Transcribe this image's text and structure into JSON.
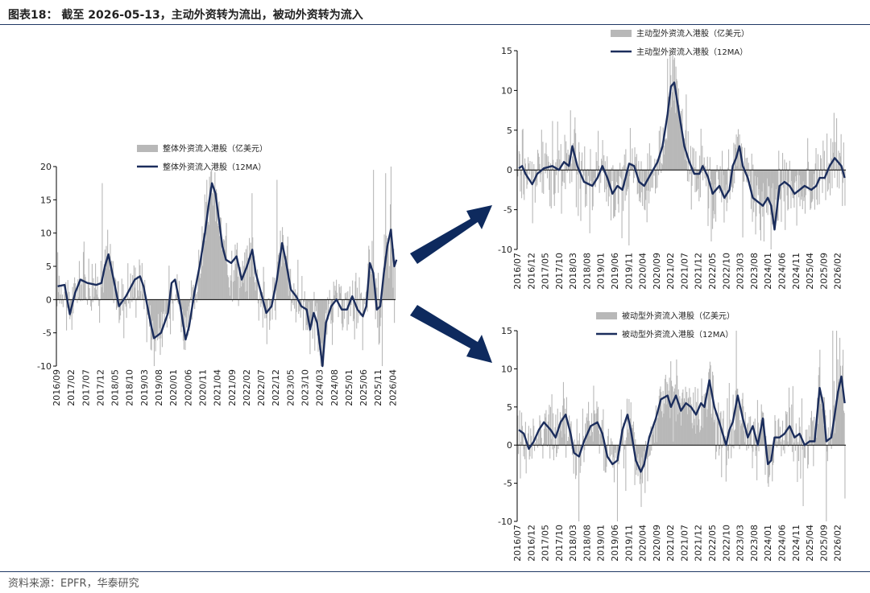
{
  "figure": {
    "title": "图表18：  截至 2026-05-13，主动外资转为流出，被动外资转为流入",
    "source": "资料来源：EPFR，华泰研究"
  },
  "colors": {
    "line": "#1b2d5c",
    "bar": "#b8b8b8",
    "arrow": "#0e2a5e"
  },
  "chart_data": [
    {
      "id": "overall",
      "type": "bar+line",
      "ylim": [
        -10,
        20
      ],
      "yticks": [
        -10,
        -5,
        0,
        5,
        10,
        15,
        20
      ],
      "x_start": "2016-09",
      "x_end": "2026-05",
      "xtick_labels": [
        "2016/09",
        "2017/02",
        "2017/07",
        "2017/12",
        "2018/05",
        "2018/10",
        "2019/03",
        "2019/08",
        "2020/01",
        "2020/06",
        "2020/11",
        "2021/04",
        "2021/09",
        "2022/02",
        "2022/07",
        "2022/12",
        "2023/05",
        "2023/10",
        "2024/03",
        "2024/08",
        "2025/01",
        "2025/06",
        "2025/11",
        "2026/04"
      ],
      "series": [
        {
          "name": "整体外资流入港股（亿美元）",
          "kind": "bar"
        },
        {
          "name": "整体外资流入港股（12MA）",
          "kind": "line"
        }
      ],
      "ma_line": [
        [
          2016.7,
          2.0
        ],
        [
          2016.9,
          2.2
        ],
        [
          2017.05,
          -2.2
        ],
        [
          2017.2,
          1.0
        ],
        [
          2017.35,
          3.0
        ],
        [
          2017.55,
          2.5
        ],
        [
          2017.8,
          2.2
        ],
        [
          2017.95,
          2.5
        ],
        [
          2018.05,
          5.0
        ],
        [
          2018.15,
          6.8
        ],
        [
          2018.3,
          3.0
        ],
        [
          2018.45,
          -1.0
        ],
        [
          2018.65,
          0.5
        ],
        [
          2018.9,
          3.0
        ],
        [
          2019.05,
          3.5
        ],
        [
          2019.15,
          2.0
        ],
        [
          2019.35,
          -3.5
        ],
        [
          2019.45,
          -5.8
        ],
        [
          2019.65,
          -5.0
        ],
        [
          2019.85,
          -2.0
        ],
        [
          2019.95,
          2.5
        ],
        [
          2020.05,
          3.0
        ],
        [
          2020.2,
          -1.0
        ],
        [
          2020.35,
          -6.0
        ],
        [
          2020.45,
          -4.0
        ],
        [
          2020.6,
          1.0
        ],
        [
          2020.75,
          5.0
        ],
        [
          2020.9,
          10.0
        ],
        [
          2021.0,
          14.0
        ],
        [
          2021.1,
          17.5
        ],
        [
          2021.2,
          16.0
        ],
        [
          2021.3,
          12.0
        ],
        [
          2021.4,
          8.0
        ],
        [
          2021.5,
          6.0
        ],
        [
          2021.65,
          5.5
        ],
        [
          2021.8,
          6.5
        ],
        [
          2021.95,
          3.0
        ],
        [
          2022.1,
          5.0
        ],
        [
          2022.25,
          7.5
        ],
        [
          2022.35,
          4.0
        ],
        [
          2022.5,
          1.0
        ],
        [
          2022.65,
          -2.0
        ],
        [
          2022.8,
          -1.0
        ],
        [
          2022.95,
          3.0
        ],
        [
          2023.1,
          8.5
        ],
        [
          2023.2,
          6.0
        ],
        [
          2023.35,
          1.5
        ],
        [
          2023.5,
          0.5
        ],
        [
          2023.65,
          -1.0
        ],
        [
          2023.8,
          -1.5
        ],
        [
          2023.9,
          -4.5
        ],
        [
          2024.0,
          -2.0
        ],
        [
          2024.1,
          -3.5
        ],
        [
          2024.25,
          -10.0
        ],
        [
          2024.35,
          -3.5
        ],
        [
          2024.5,
          -1.0
        ],
        [
          2024.65,
          0.0
        ],
        [
          2024.8,
          -1.5
        ],
        [
          2024.95,
          -1.5
        ],
        [
          2025.1,
          0.5
        ],
        [
          2025.25,
          -1.5
        ],
        [
          2025.4,
          -2.5
        ],
        [
          2025.5,
          -1.0
        ],
        [
          2025.6,
          5.5
        ],
        [
          2025.7,
          4.0
        ],
        [
          2025.8,
          -1.5
        ],
        [
          2025.9,
          -1.0
        ],
        [
          2026.0,
          4.0
        ],
        [
          2026.1,
          8.0
        ],
        [
          2026.2,
          10.5
        ],
        [
          2026.3,
          5.0
        ],
        [
          2026.36,
          6.0
        ]
      ],
      "bar_spikes": [
        [
          2017.98,
          17.5
        ],
        [
          2018.12,
          10.5
        ],
        [
          2019.45,
          -10.0
        ],
        [
          2020.95,
          18.0
        ],
        [
          2021.1,
          16.0
        ],
        [
          2022.25,
          16.0
        ],
        [
          2022.95,
          18.0
        ],
        [
          2024.25,
          -10.0
        ],
        [
          2025.7,
          19.5
        ],
        [
          2025.95,
          -10.0
        ],
        [
          2026.05,
          19.0
        ],
        [
          2026.2,
          20.0
        ],
        [
          2026.3,
          -3.5
        ]
      ]
    },
    {
      "id": "active",
      "type": "bar+line",
      "ylim": [
        -10,
        15
      ],
      "yticks": [
        -10,
        -5,
        0,
        5,
        10,
        15
      ],
      "x_start": "2016-07",
      "x_end": "2026-05",
      "xtick_labels": [
        "2016/07",
        "2016/12",
        "2017/05",
        "2017/10",
        "2018/03",
        "2018/08",
        "2019/01",
        "2019/06",
        "2019/11",
        "2020/04",
        "2020/09",
        "2021/02",
        "2021/07",
        "2021/12",
        "2022/05",
        "2022/10",
        "2023/03",
        "2023/08",
        "2024/01",
        "2024/06",
        "2024/11",
        "2025/04",
        "2025/09",
        "2026/02"
      ],
      "series": [
        {
          "name": "主动型外资流入港股（亿美元）",
          "kind": "bar"
        },
        {
          "name": "主动型外资流入港股（12MA）",
          "kind": "line"
        }
      ],
      "ma_line": [
        [
          2016.55,
          0.2
        ],
        [
          2016.65,
          0.5
        ],
        [
          2016.75,
          -0.5
        ],
        [
          2016.95,
          -1.8
        ],
        [
          2017.1,
          -0.5
        ],
        [
          2017.3,
          0.2
        ],
        [
          2017.55,
          0.5
        ],
        [
          2017.75,
          0.0
        ],
        [
          2017.9,
          1.0
        ],
        [
          2018.05,
          0.5
        ],
        [
          2018.15,
          3.0
        ],
        [
          2018.3,
          0.5
        ],
        [
          2018.5,
          -1.5
        ],
        [
          2018.75,
          -2.0
        ],
        [
          2018.9,
          -1.0
        ],
        [
          2019.05,
          0.5
        ],
        [
          2019.2,
          -1.0
        ],
        [
          2019.35,
          -3.0
        ],
        [
          2019.5,
          -2.0
        ],
        [
          2019.65,
          -2.5
        ],
        [
          2019.85,
          0.8
        ],
        [
          2020.0,
          0.5
        ],
        [
          2020.15,
          -1.5
        ],
        [
          2020.3,
          -2.0
        ],
        [
          2020.5,
          -0.5
        ],
        [
          2020.7,
          1.0
        ],
        [
          2020.85,
          3.0
        ],
        [
          2021.0,
          7.0
        ],
        [
          2021.1,
          10.5
        ],
        [
          2021.2,
          11.0
        ],
        [
          2021.35,
          7.0
        ],
        [
          2021.5,
          3.0
        ],
        [
          2021.65,
          1.0
        ],
        [
          2021.8,
          -0.5
        ],
        [
          2021.95,
          -0.5
        ],
        [
          2022.05,
          0.5
        ],
        [
          2022.2,
          -0.8
        ],
        [
          2022.35,
          -3.0
        ],
        [
          2022.55,
          -2.0
        ],
        [
          2022.7,
          -3.5
        ],
        [
          2022.85,
          -2.5
        ],
        [
          2022.95,
          0.5
        ],
        [
          2023.05,
          1.5
        ],
        [
          2023.15,
          3.0
        ],
        [
          2023.25,
          0.5
        ],
        [
          2023.4,
          -1.0
        ],
        [
          2023.55,
          -3.5
        ],
        [
          2023.7,
          -4.0
        ],
        [
          2023.85,
          -4.5
        ],
        [
          2024.0,
          -3.5
        ],
        [
          2024.1,
          -4.5
        ],
        [
          2024.2,
          -7.5
        ],
        [
          2024.35,
          -2.0
        ],
        [
          2024.5,
          -1.5
        ],
        [
          2024.65,
          -2.0
        ],
        [
          2024.8,
          -3.0
        ],
        [
          2024.95,
          -2.5
        ],
        [
          2025.1,
          -2.0
        ],
        [
          2025.3,
          -2.5
        ],
        [
          2025.45,
          -2.0
        ],
        [
          2025.55,
          -1.0
        ],
        [
          2025.7,
          -1.0
        ],
        [
          2025.85,
          0.5
        ],
        [
          2026.0,
          1.5
        ],
        [
          2026.1,
          1.0
        ],
        [
          2026.2,
          0.5
        ],
        [
          2026.3,
          -1.0
        ]
      ],
      "bar_spikes": [
        [
          2018.1,
          7.5
        ],
        [
          2019.85,
          -9.5
        ],
        [
          2021.0,
          14.0
        ],
        [
          2021.15,
          15.0
        ],
        [
          2021.55,
          9.5
        ],
        [
          2022.3,
          -9.0
        ],
        [
          2023.25,
          -8.5
        ],
        [
          2023.75,
          -5.5
        ],
        [
          2024.2,
          -7.0
        ],
        [
          2025.4,
          -5.0
        ],
        [
          2026.05,
          6.5
        ],
        [
          2026.2,
          4.5
        ],
        [
          2026.3,
          -4.5
        ]
      ]
    },
    {
      "id": "passive",
      "type": "bar+line",
      "ylim": [
        -10,
        15
      ],
      "yticks": [
        -10,
        -5,
        0,
        5,
        10,
        15
      ],
      "x_start": "2016-07",
      "x_end": "2026-05",
      "xtick_labels": [
        "2016/07",
        "2016/12",
        "2017/05",
        "2017/10",
        "2018/03",
        "2018/08",
        "2019/01",
        "2019/06",
        "2019/11",
        "2020/04",
        "2020/09",
        "2021/02",
        "2021/07",
        "2021/12",
        "2022/05",
        "2022/10",
        "2023/03",
        "2023/08",
        "2024/01",
        "2024/06",
        "2024/11",
        "2025/04",
        "2025/09",
        "2026/02"
      ],
      "series": [
        {
          "name": "被动型外资流入港股（亿美元）",
          "kind": "bar"
        },
        {
          "name": "被动型外资流入港股（12MA）",
          "kind": "line"
        }
      ],
      "ma_line": [
        [
          2016.55,
          2.0
        ],
        [
          2016.7,
          1.5
        ],
        [
          2016.85,
          -0.5
        ],
        [
          2017.0,
          0.5
        ],
        [
          2017.15,
          2.0
        ],
        [
          2017.3,
          3.0
        ],
        [
          2017.5,
          2.0
        ],
        [
          2017.65,
          1.0
        ],
        [
          2017.8,
          3.0
        ],
        [
          2017.95,
          4.0
        ],
        [
          2018.1,
          1.5
        ],
        [
          2018.2,
          -1.0
        ],
        [
          2018.35,
          -1.5
        ],
        [
          2018.5,
          0.5
        ],
        [
          2018.7,
          2.5
        ],
        [
          2018.9,
          3.0
        ],
        [
          2019.05,
          1.5
        ],
        [
          2019.2,
          -1.5
        ],
        [
          2019.35,
          -2.5
        ],
        [
          2019.5,
          -2.0
        ],
        [
          2019.65,
          2.0
        ],
        [
          2019.8,
          4.0
        ],
        [
          2019.9,
          2.0
        ],
        [
          2020.05,
          -2.0
        ],
        [
          2020.2,
          -3.5
        ],
        [
          2020.3,
          -2.5
        ],
        [
          2020.45,
          1.0
        ],
        [
          2020.65,
          3.5
        ],
        [
          2020.8,
          6.0
        ],
        [
          2021.0,
          6.5
        ],
        [
          2021.1,
          5.0
        ],
        [
          2021.25,
          6.5
        ],
        [
          2021.4,
          4.5
        ],
        [
          2021.55,
          5.5
        ],
        [
          2021.7,
          5.0
        ],
        [
          2021.85,
          4.0
        ],
        [
          2022.0,
          5.5
        ],
        [
          2022.1,
          5.0
        ],
        [
          2022.25,
          8.5
        ],
        [
          2022.4,
          5.0
        ],
        [
          2022.55,
          3.0
        ],
        [
          2022.75,
          0.0
        ],
        [
          2022.85,
          2.0
        ],
        [
          2022.95,
          3.0
        ],
        [
          2023.1,
          6.5
        ],
        [
          2023.25,
          3.5
        ],
        [
          2023.4,
          1.0
        ],
        [
          2023.55,
          2.5
        ],
        [
          2023.7,
          0.0
        ],
        [
          2023.85,
          3.5
        ],
        [
          2024.0,
          -2.5
        ],
        [
          2024.1,
          -2.0
        ],
        [
          2024.2,
          1.0
        ],
        [
          2024.35,
          1.0
        ],
        [
          2024.5,
          1.5
        ],
        [
          2024.65,
          2.5
        ],
        [
          2024.8,
          1.0
        ],
        [
          2024.95,
          1.5
        ],
        [
          2025.1,
          0.0
        ],
        [
          2025.25,
          0.5
        ],
        [
          2025.4,
          0.5
        ],
        [
          2025.55,
          7.5
        ],
        [
          2025.65,
          5.5
        ],
        [
          2025.75,
          0.5
        ],
        [
          2025.9,
          1.0
        ],
        [
          2026.0,
          4.0
        ],
        [
          2026.1,
          7.0
        ],
        [
          2026.2,
          9.0
        ],
        [
          2026.3,
          5.5
        ]
      ],
      "bar_spikes": [
        [
          2018.35,
          -10.0
        ],
        [
          2019.5,
          -10.0
        ],
        [
          2019.75,
          -6.0
        ],
        [
          2020.25,
          -5.0
        ],
        [
          2021.1,
          11.0
        ],
        [
          2022.25,
          10.0
        ],
        [
          2023.05,
          15.0
        ],
        [
          2024.0,
          -5.0
        ],
        [
          2025.05,
          -8.0
        ],
        [
          2025.55,
          12.5
        ],
        [
          2025.75,
          -10.0
        ],
        [
          2025.95,
          15.0
        ],
        [
          2026.05,
          15.0
        ],
        [
          2026.25,
          12.5
        ],
        [
          2026.3,
          -7.0
        ]
      ]
    }
  ]
}
